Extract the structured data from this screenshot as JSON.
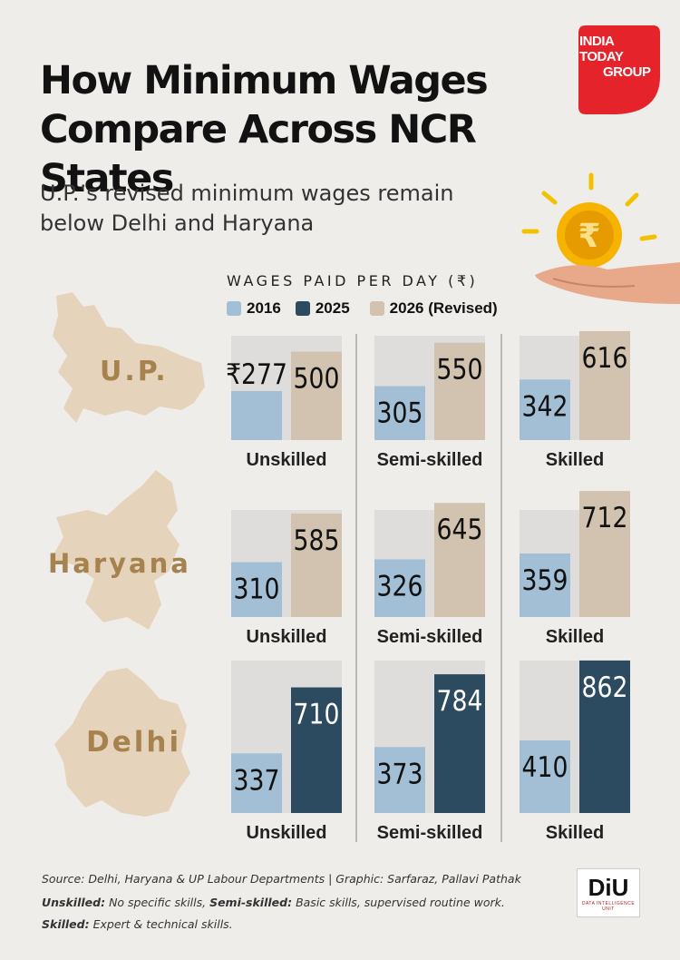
{
  "title": "How Minimum Wages Compare Across NCR States",
  "subtitle": "U.P.’s revised minimum wages remain below Delhi and Haryana",
  "logo": {
    "text_line1": "INDIA",
    "text_line2": "TODAY",
    "text_line3": "GROUP",
    "color": "#e4232b"
  },
  "colors": {
    "y2016": "#a3bfd5",
    "y2025": "#2c4a60",
    "y2026": "#d2c3b1",
    "panel": "#dfdddb",
    "map": "#e6d3bb",
    "label": "#a6824e"
  },
  "legend": {
    "title": "WAGES PAID PER DAY (₹)",
    "items": [
      {
        "label": "2016",
        "color": "#a3bfd5"
      },
      {
        "label": "2025",
        "color": "#2c4a60"
      },
      {
        "label": "2026 (Revised)",
        "color": "#d2c3b1"
      }
    ]
  },
  "icons": {
    "coin": "rupee-coin-in-hand-icon",
    "map_up": "up-map-icon",
    "map_haryana": "haryana-map-icon",
    "map_delhi": "delhi-map-icon"
  },
  "chart_data": {
    "type": "bar",
    "title": "How Minimum Wages Compare Across NCR States",
    "ylabel": "WAGES PAID PER DAY (₹)",
    "categories": [
      "Unskilled",
      "Semi-skilled",
      "Skilled"
    ],
    "currency_prefix": "₹",
    "states": [
      {
        "name": "U.P.",
        "series": [
          {
            "name": "2016",
            "values": [
              277,
              305,
              342
            ]
          },
          {
            "name": "2026 (Revised)",
            "values": [
              500,
              550,
              616
            ]
          }
        ]
      },
      {
        "name": "Haryana",
        "series": [
          {
            "name": "2016",
            "values": [
              310,
              326,
              359
            ]
          },
          {
            "name": "2026 (Revised)",
            "values": [
              585,
              645,
              712
            ]
          }
        ]
      },
      {
        "name": "Delhi",
        "series": [
          {
            "name": "2016",
            "values": [
              337,
              373,
              410
            ]
          },
          {
            "name": "2025",
            "values": [
              710,
              784,
              862
            ]
          }
        ]
      }
    ]
  },
  "footer": {
    "source": "Source: Delhi, Haryana & UP Labour Departments | Graphic:  Sarfaraz, Pallavi Pathak",
    "unskilled_term": "Unskilled:",
    "unskilled_def": " No specific skills, ",
    "semi_term": "Semi-skilled:",
    "semi_def": " Basic skills, supervised routine work.",
    "skilled_term": "Skilled:",
    "skilled_def": " Expert & technical skills."
  },
  "diu": {
    "main": "DiU",
    "sub": "DATA INTELLIGENCE UNIT"
  }
}
